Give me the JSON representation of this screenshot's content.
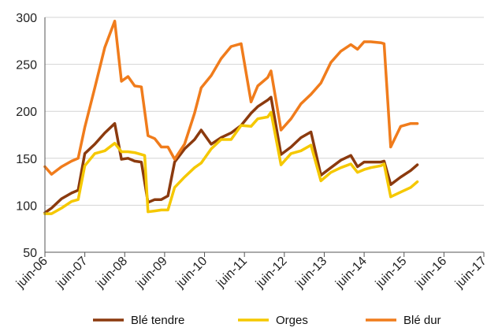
{
  "chart_data": {
    "type": "line",
    "title": "",
    "xlabel": "",
    "ylabel": "",
    "ylim": [
      50,
      300
    ],
    "yticks": [
      50,
      100,
      150,
      200,
      250,
      300
    ],
    "x_tick_labels": [
      "juin-06",
      "juin-07",
      "juin-08",
      "juin-09",
      "juin-10",
      "juin-11",
      "juin-12",
      "juin-13",
      "juin-14",
      "juin-15",
      "juin-16",
      "juin-17"
    ],
    "x_tick_positions": [
      0,
      12,
      24,
      36,
      48,
      60,
      72,
      84,
      96,
      108,
      120,
      132
    ],
    "x_range": [
      0,
      132
    ],
    "grid": true,
    "legend_position": "bottom",
    "series": [
      {
        "name": "Blé tendre",
        "color": "#8B3A0E",
        "points": [
          [
            0,
            92
          ],
          [
            2,
            97
          ],
          [
            5,
            107
          ],
          [
            8,
            113
          ],
          [
            10,
            116
          ],
          [
            12,
            155
          ],
          [
            15,
            165
          ],
          [
            18,
            177
          ],
          [
            21,
            187
          ],
          [
            23,
            149
          ],
          [
            25,
            150
          ],
          [
            27,
            147
          ],
          [
            29,
            146
          ],
          [
            31,
            103
          ],
          [
            33,
            106
          ],
          [
            35,
            106
          ],
          [
            37,
            110
          ],
          [
            39,
            146
          ],
          [
            42,
            160
          ],
          [
            45,
            170
          ],
          [
            47,
            180
          ],
          [
            50,
            165
          ],
          [
            53,
            172
          ],
          [
            56,
            177
          ],
          [
            59,
            185
          ],
          [
            62,
            198
          ],
          [
            64,
            205
          ],
          [
            67,
            212
          ],
          [
            68,
            215
          ],
          [
            71,
            154
          ],
          [
            74,
            162
          ],
          [
            77,
            172
          ],
          [
            80,
            178
          ],
          [
            83,
            132
          ],
          [
            86,
            140
          ],
          [
            89,
            148
          ],
          [
            92,
            153
          ],
          [
            94,
            141
          ],
          [
            96,
            146
          ],
          [
            98,
            146
          ],
          [
            101,
            146
          ],
          [
            102,
            147
          ],
          [
            104,
            122
          ],
          [
            107,
            130
          ],
          [
            110,
            137
          ],
          [
            112,
            143
          ]
        ]
      },
      {
        "name": "Orges",
        "color": "#F5C800",
        "points": [
          [
            0,
            91
          ],
          [
            2,
            91
          ],
          [
            5,
            97
          ],
          [
            8,
            104
          ],
          [
            10,
            106
          ],
          [
            12,
            142
          ],
          [
            15,
            155
          ],
          [
            18,
            158
          ],
          [
            21,
            166
          ],
          [
            23,
            157
          ],
          [
            25,
            157
          ],
          [
            27,
            156
          ],
          [
            30,
            153
          ],
          [
            31,
            93
          ],
          [
            33,
            94
          ],
          [
            35,
            95
          ],
          [
            37,
            95
          ],
          [
            39,
            119
          ],
          [
            42,
            130
          ],
          [
            45,
            140
          ],
          [
            47,
            145
          ],
          [
            50,
            160
          ],
          [
            53,
            170
          ],
          [
            56,
            170
          ],
          [
            59,
            185
          ],
          [
            62,
            184
          ],
          [
            64,
            192
          ],
          [
            67,
            194
          ],
          [
            68,
            199
          ],
          [
            71,
            143
          ],
          [
            74,
            155
          ],
          [
            77,
            158
          ],
          [
            80,
            164
          ],
          [
            83,
            126
          ],
          [
            86,
            135
          ],
          [
            89,
            140
          ],
          [
            92,
            144
          ],
          [
            94,
            135
          ],
          [
            96,
            138
          ],
          [
            98,
            140
          ],
          [
            101,
            142
          ],
          [
            102,
            144
          ],
          [
            104,
            109
          ],
          [
            107,
            114
          ],
          [
            110,
            119
          ],
          [
            112,
            125
          ]
        ]
      },
      {
        "name": "Blé dur",
        "color": "#F07C1C",
        "points": [
          [
            0,
            141
          ],
          [
            2,
            133
          ],
          [
            5,
            141
          ],
          [
            8,
            147
          ],
          [
            10,
            150
          ],
          [
            12,
            183
          ],
          [
            15,
            225
          ],
          [
            18,
            268
          ],
          [
            21,
            296
          ],
          [
            23,
            232
          ],
          [
            25,
            237
          ],
          [
            27,
            227
          ],
          [
            29,
            226
          ],
          [
            31,
            174
          ],
          [
            33,
            171
          ],
          [
            35,
            162
          ],
          [
            37,
            162
          ],
          [
            39,
            149
          ],
          [
            42,
            165
          ],
          [
            45,
            198
          ],
          [
            47,
            225
          ],
          [
            50,
            238
          ],
          [
            53,
            256
          ],
          [
            56,
            269
          ],
          [
            59,
            272
          ],
          [
            62,
            210
          ],
          [
            64,
            227
          ],
          [
            67,
            236
          ],
          [
            68,
            243
          ],
          [
            71,
            180
          ],
          [
            74,
            192
          ],
          [
            77,
            208
          ],
          [
            80,
            218
          ],
          [
            83,
            230
          ],
          [
            86,
            252
          ],
          [
            89,
            264
          ],
          [
            92,
            271
          ],
          [
            94,
            266
          ],
          [
            96,
            274
          ],
          [
            98,
            274
          ],
          [
            101,
            273
          ],
          [
            102,
            272
          ],
          [
            104,
            162
          ],
          [
            107,
            184
          ],
          [
            110,
            187
          ],
          [
            112,
            187
          ]
        ]
      }
    ]
  }
}
